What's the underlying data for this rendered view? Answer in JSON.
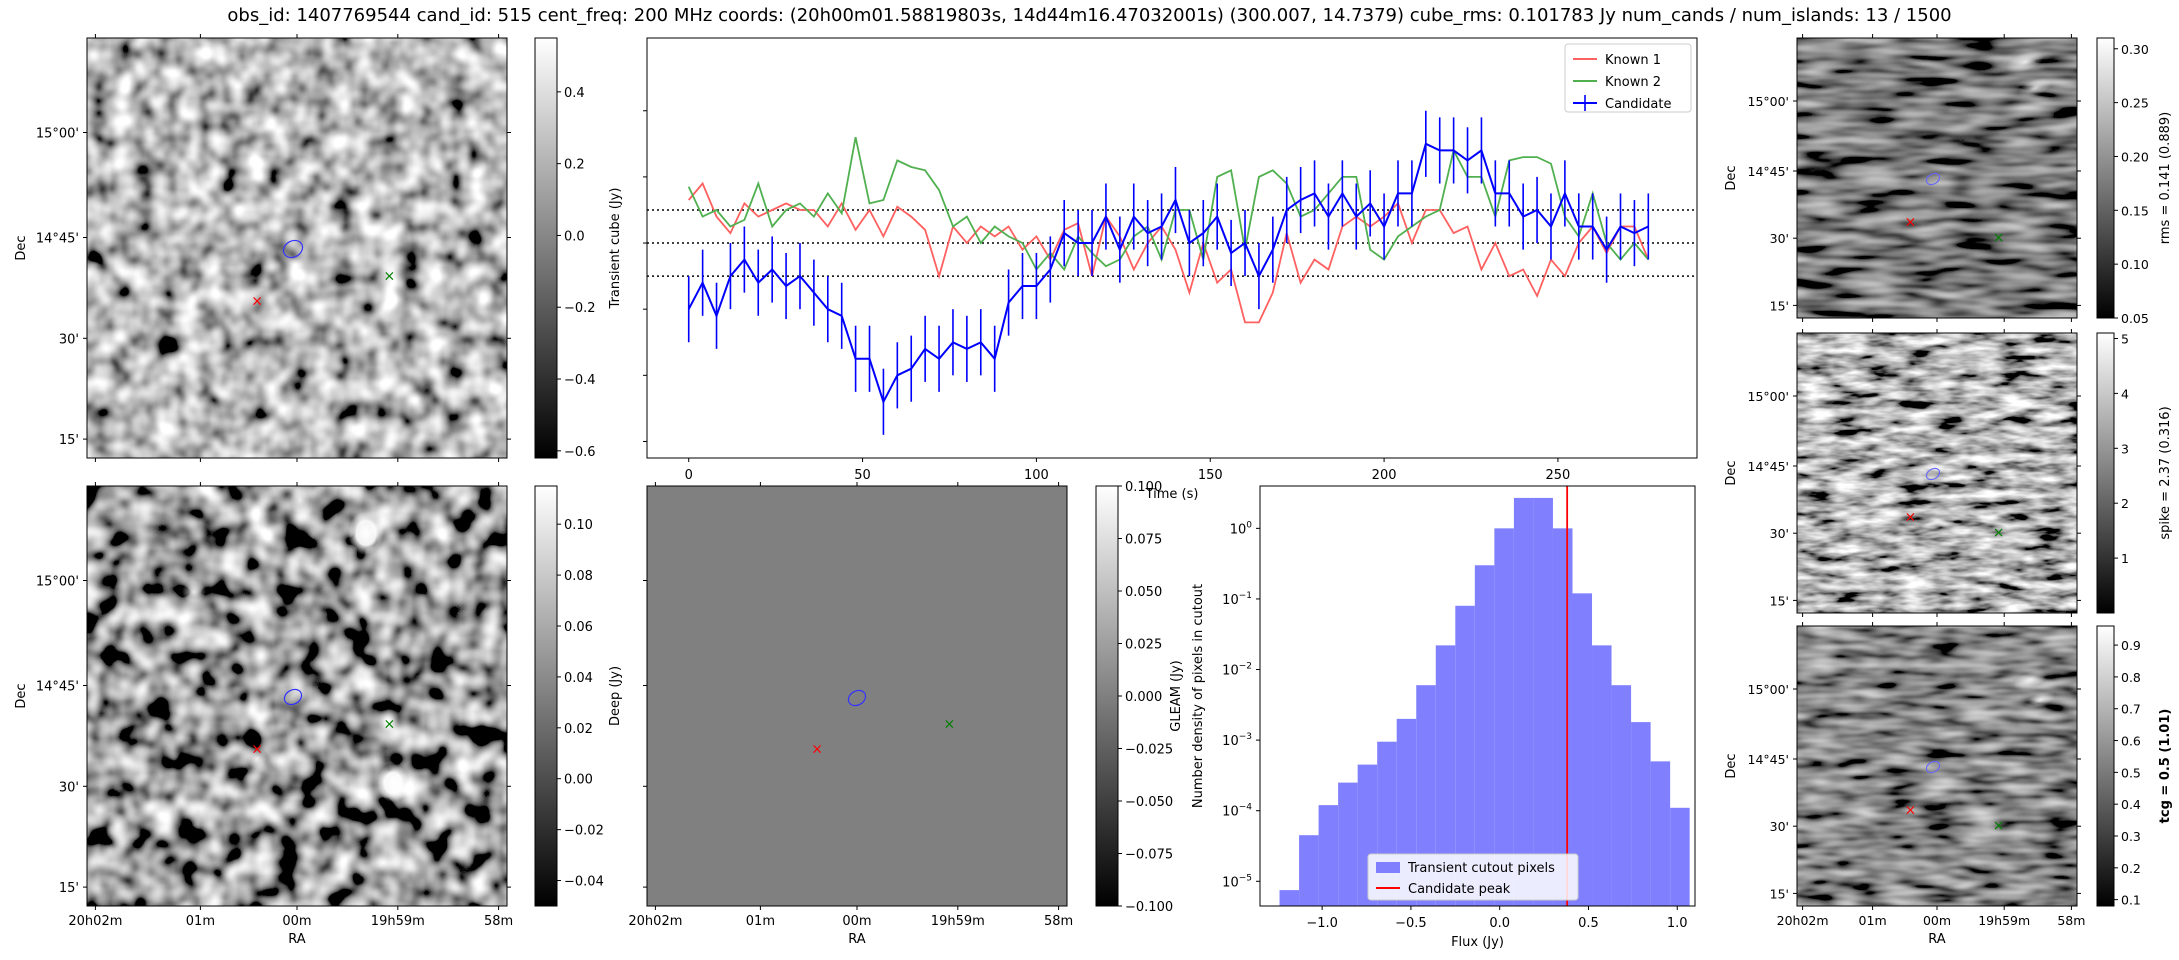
{
  "title": "obs_id: 1407769544 cand_id: 515 cent_freq: 200 MHz coords: (20h00m01.58819803s, 14d44m16.47032001s) (300.007, 14.7379) cube_rms: 0.101783 Jy num_cands / num_islands: 13 / 1500",
  "colors": {
    "candidate": "#0000ff",
    "known1": "#ff6060",
    "known2": "#50b050",
    "hist": "#8080ff",
    "peak": "#ff0000",
    "red_marker": "#ff0000",
    "green_marker": "#008000"
  },
  "image_axes": {
    "ra_ticks": [
      "20h02m",
      "01m",
      "00m",
      "19h59m",
      "58m"
    ],
    "dec_ticks": [
      "15°00'",
      "14°45'",
      "30'",
      "15'"
    ],
    "ra_label": "RA",
    "dec_label": "Dec"
  },
  "panels": {
    "transient": {
      "cbar_label": "Transient cube (Jy)",
      "cbar_ticks": [
        "0.4",
        "0.2",
        "0.0",
        "−0.2",
        "−0.4",
        "−0.6"
      ],
      "vmin": -0.62,
      "vmax": 0.55
    },
    "deep": {
      "cbar_label": "Deep (Jy)",
      "cbar_ticks": [
        "0.10",
        "0.08",
        "0.06",
        "0.04",
        "0.02",
        "0.00",
        "−0.02",
        "−0.04"
      ],
      "vmin": -0.05,
      "vmax": 0.115
    },
    "gleam": {
      "cbar_label": "GLEAM (Jy)",
      "cbar_ticks": [
        "0.100",
        "0.075",
        "0.050",
        "0.025",
        "0.000",
        "−0.025",
        "−0.050",
        "−0.075",
        "−0.100"
      ],
      "vmin": -0.1,
      "vmax": 0.1
    },
    "rms": {
      "cbar_label": "rms = 0.141 (0.889)",
      "cbar_ticks": [
        "0.30",
        "0.25",
        "0.20",
        "0.15",
        "0.10",
        "0.05"
      ],
      "vmin": 0.05,
      "vmax": 0.31
    },
    "spike": {
      "cbar_label": "spike = 2.37 (0.316)",
      "cbar_ticks": [
        "5",
        "4",
        "3",
        "2",
        "1"
      ],
      "vmin": 0,
      "vmax": 5.1
    },
    "tcg": {
      "cbar_label": "tcg = 0.5 (1.01)",
      "cbar_ticks": [
        "0.9",
        "0.8",
        "0.7",
        "0.6",
        "0.5",
        "0.4",
        "0.3",
        "0.2",
        "0.1"
      ],
      "vmin": 0.08,
      "vmax": 0.96
    }
  },
  "chart_data": [
    {
      "type": "line",
      "title": "",
      "xlabel": "Time (s)",
      "ylabel": "",
      "xlim": [
        -12,
        290
      ],
      "ylim": [
        -0.65,
        0.62
      ],
      "xticks": [
        0,
        50,
        100,
        150,
        200,
        250
      ],
      "hlines": [
        0.1,
        0.0,
        -0.1
      ],
      "x": [
        0,
        4,
        8,
        12,
        16,
        20,
        24,
        28,
        32,
        36,
        40,
        44,
        48,
        52,
        56,
        60,
        64,
        68,
        72,
        76,
        80,
        84,
        88,
        92,
        96,
        100,
        104,
        108,
        112,
        116,
        120,
        124,
        128,
        132,
        136,
        140,
        144,
        148,
        152,
        156,
        160,
        164,
        168,
        172,
        176,
        180,
        184,
        188,
        192,
        196,
        200,
        204,
        208,
        212,
        216,
        220,
        224,
        228,
        232,
        236,
        240,
        244,
        248,
        252,
        256,
        260,
        264,
        268,
        272,
        276
      ],
      "series": [
        {
          "name": "Known 1",
          "values": [
            0.13,
            0.18,
            0.08,
            0.03,
            0.12,
            0.08,
            0.1,
            0.12,
            0.1,
            0.1,
            0.05,
            0.12,
            0.04,
            0.1,
            0.02,
            0.11,
            0.08,
            0.04,
            -0.1,
            0.05,
            0.0,
            0.05,
            0.02,
            0.05,
            -0.02,
            0.02,
            -0.05,
            0.04,
            0.06,
            -0.1,
            0.08,
            0.02,
            -0.08,
            0.0,
            0.05,
            -0.02,
            -0.15,
            0.0,
            -0.12,
            -0.08,
            -0.24,
            -0.24,
            -0.15,
            0.03,
            -0.12,
            -0.05,
            -0.08,
            0.05,
            0.08,
            0.05,
            0.08,
            0.12,
            0.0,
            0.1,
            0.1,
            0.03,
            0.05,
            -0.08,
            0.0,
            -0.1,
            -0.08,
            -0.16,
            -0.05,
            -0.1,
            0.0,
            0.05,
            -0.03,
            0.05,
            0.05,
            -0.05
          ]
        },
        {
          "name": "Known 2",
          "values": [
            0.17,
            0.08,
            0.1,
            0.05,
            0.07,
            0.18,
            0.05,
            0.1,
            0.12,
            0.08,
            0.15,
            0.09,
            0.32,
            0.12,
            0.13,
            0.25,
            0.23,
            0.22,
            0.16,
            0.05,
            0.08,
            0.0,
            0.05,
            0.02,
            0.0,
            -0.08,
            -0.03,
            -0.08,
            0.02,
            -0.03,
            -0.07,
            -0.05,
            0.02,
            0.05,
            -0.05,
            0.1,
            0.1,
            -0.05,
            0.2,
            0.22,
            -0.02,
            0.2,
            0.22,
            0.18,
            0.08,
            0.1,
            0.15,
            0.2,
            0.2,
            -0.02,
            -0.05,
            0.02,
            0.05,
            0.08,
            0.1,
            0.28,
            0.2,
            0.2,
            0.08,
            0.25,
            0.26,
            0.26,
            0.24,
            0.08,
            0.02,
            0.15,
            0.0,
            -0.05,
            0.0,
            -0.05
          ]
        },
        {
          "name": "Candidate",
          "values": [
            -0.2,
            -0.12,
            -0.22,
            -0.1,
            -0.05,
            -0.12,
            -0.08,
            -0.13,
            -0.1,
            -0.15,
            -0.2,
            -0.22,
            -0.35,
            -0.35,
            -0.48,
            -0.4,
            -0.38,
            -0.32,
            -0.35,
            -0.3,
            -0.32,
            -0.3,
            -0.35,
            -0.18,
            -0.13,
            -0.13,
            -0.08,
            0.03,
            0.0,
            0.0,
            0.08,
            -0.02,
            0.08,
            0.03,
            0.05,
            0.13,
            0.0,
            0.03,
            0.08,
            -0.03,
            0.0,
            -0.1,
            -0.02,
            0.1,
            0.13,
            0.15,
            0.08,
            0.15,
            0.08,
            0.12,
            0.05,
            0.15,
            0.15,
            0.3,
            0.28,
            0.28,
            0.25,
            0.28,
            0.15,
            0.15,
            0.08,
            0.1,
            0.05,
            0.15,
            0.05,
            0.05,
            -0.02,
            0.05,
            0.03,
            0.05
          ],
          "yerr": 0.1
        }
      ],
      "legend": "top-right"
    },
    {
      "type": "bar",
      "title": "",
      "xlabel": "Flux (Jy)",
      "ylabel": "Number density of pixels in cutout",
      "yscale": "log",
      "xlim": [
        -1.35,
        1.1
      ],
      "ylim_log10": [
        -5.35,
        0.6
      ],
      "xticks": [
        "−1.0",
        "−0.5",
        "0.0",
        "0.5",
        "1.0"
      ],
      "yticks": [
        "10^0",
        "10^-1",
        "10^-2",
        "10^-3",
        "10^-4",
        "10^-5"
      ],
      "bin_edges": [
        -1.24,
        -1.13,
        -1.02,
        -0.91,
        -0.8,
        -0.69,
        -0.58,
        -0.47,
        -0.36,
        -0.25,
        -0.14,
        -0.03,
        0.08,
        0.19,
        0.3,
        0.41,
        0.52,
        0.63,
        0.74,
        0.85,
        0.96,
        1.07
      ],
      "values": [
        7.5e-06,
        4.5e-05,
        0.00012,
        0.00025,
        0.00045,
        0.00095,
        0.002,
        0.006,
        0.022,
        0.08,
        0.3,
        1.0,
        2.7,
        2.7,
        1.0,
        0.12,
        0.022,
        0.006,
        0.0018,
        0.0005,
        0.00011
      ],
      "peak_x": 0.38,
      "legend": "bottom-center",
      "series_names": [
        "Transient cutout pixels",
        "Candidate peak"
      ]
    }
  ]
}
